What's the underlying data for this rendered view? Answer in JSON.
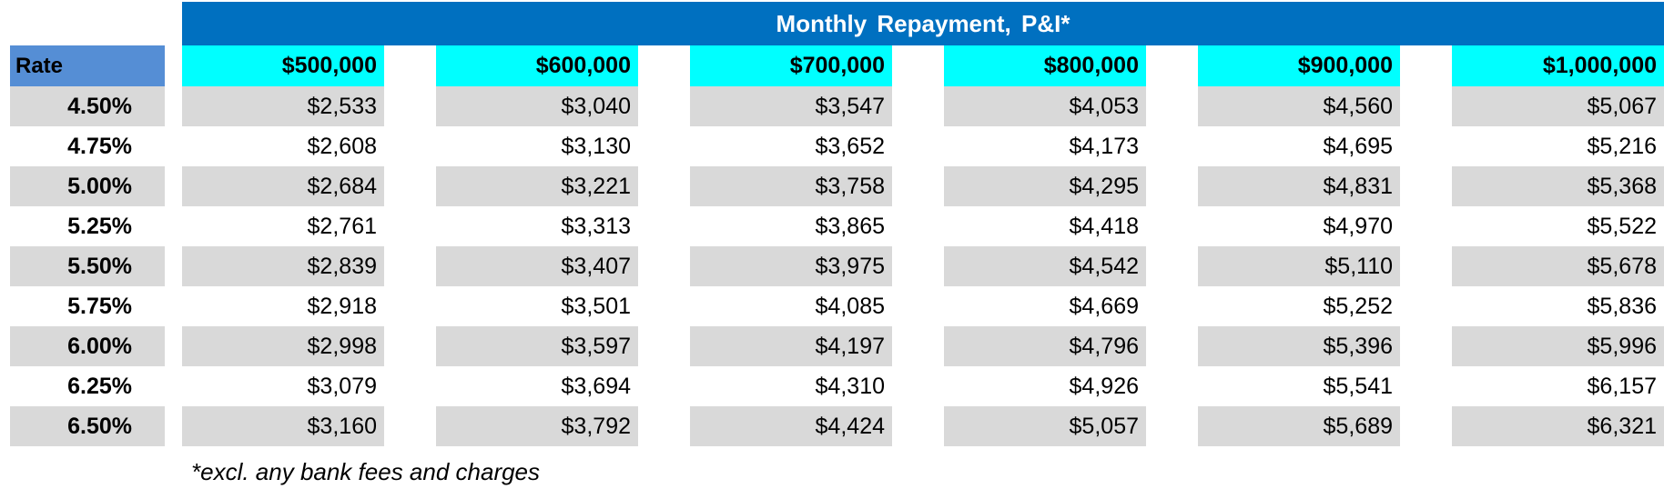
{
  "table": {
    "title": "Monthly  Repayment, P&I*",
    "rate_header": "Rate",
    "columns": [
      "$500,000",
      "$600,000",
      "$700,000",
      "$800,000",
      "$900,000",
      "$1,000,000"
    ],
    "rows": [
      {
        "rate": "4.50%",
        "values": [
          "$2,533",
          "$3,040",
          "$3,547",
          "$4,053",
          "$4,560",
          "$5,067"
        ]
      },
      {
        "rate": "4.75%",
        "values": [
          "$2,608",
          "$3,130",
          "$3,652",
          "$4,173",
          "$4,695",
          "$5,216"
        ]
      },
      {
        "rate": "5.00%",
        "values": [
          "$2,684",
          "$3,221",
          "$3,758",
          "$4,295",
          "$4,831",
          "$5,368"
        ]
      },
      {
        "rate": "5.25%",
        "values": [
          "$2,761",
          "$3,313",
          "$3,865",
          "$4,418",
          "$4,970",
          "$5,522"
        ]
      },
      {
        "rate": "5.50%",
        "values": [
          "$2,839",
          "$3,407",
          "$3,975",
          "$4,542",
          "$5,110",
          "$5,678"
        ]
      },
      {
        "rate": "5.75%",
        "values": [
          "$2,918",
          "$3,501",
          "$4,085",
          "$4,669",
          "$5,252",
          "$5,836"
        ]
      },
      {
        "rate": "6.00%",
        "values": [
          "$2,998",
          "$3,597",
          "$4,197",
          "$4,796",
          "$5,396",
          "$5,996"
        ]
      },
      {
        "rate": "6.25%",
        "values": [
          "$3,079",
          "$3,694",
          "$4,310",
          "$4,926",
          "$5,541",
          "$6,157"
        ]
      },
      {
        "rate": "6.50%",
        "values": [
          "$3,160",
          "$3,792",
          "$4,424",
          "$5,057",
          "$5,689",
          "$6,321"
        ]
      }
    ],
    "footnote": "*excl. any bank fees and charges"
  },
  "colors": {
    "title_bg": "#0070c0",
    "rate_header_bg": "#558ed5",
    "column_header_bg": "#00ffff",
    "shaded_row_bg": "#d9d9d9"
  }
}
